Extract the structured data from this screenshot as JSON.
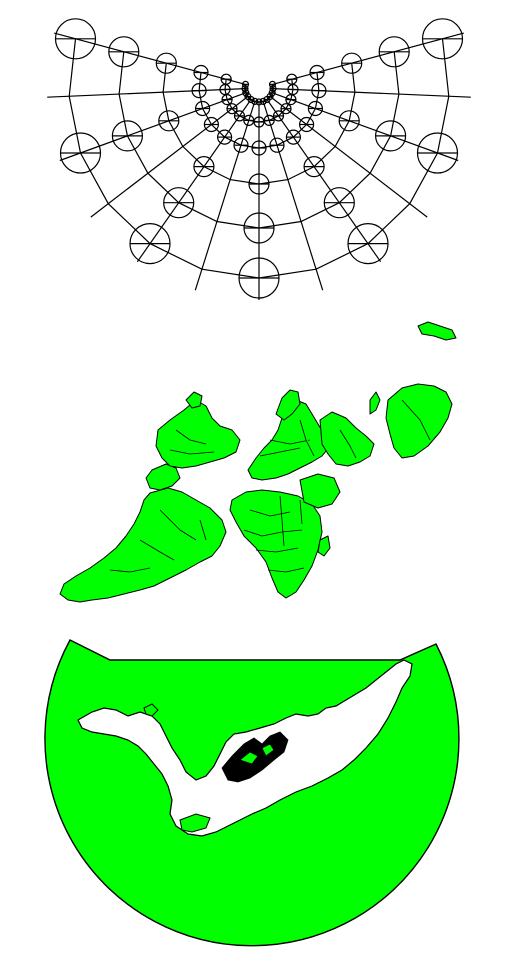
{
  "figure": {
    "panels": [
      {
        "id": "graticule-indicatrix",
        "kind": "graticule with Tissot indicatrix circles"
      },
      {
        "id": "world-map",
        "kind": "land masses with country borders"
      },
      {
        "id": "antipodal-disc",
        "kind": "land fill disc view"
      }
    ]
  },
  "colors": {
    "land": "#00ff00",
    "outline": "#000000",
    "background": "#ffffff"
  },
  "projection": {
    "meridians": 13,
    "parallels": 6,
    "indicatrix_rows": 6
  }
}
